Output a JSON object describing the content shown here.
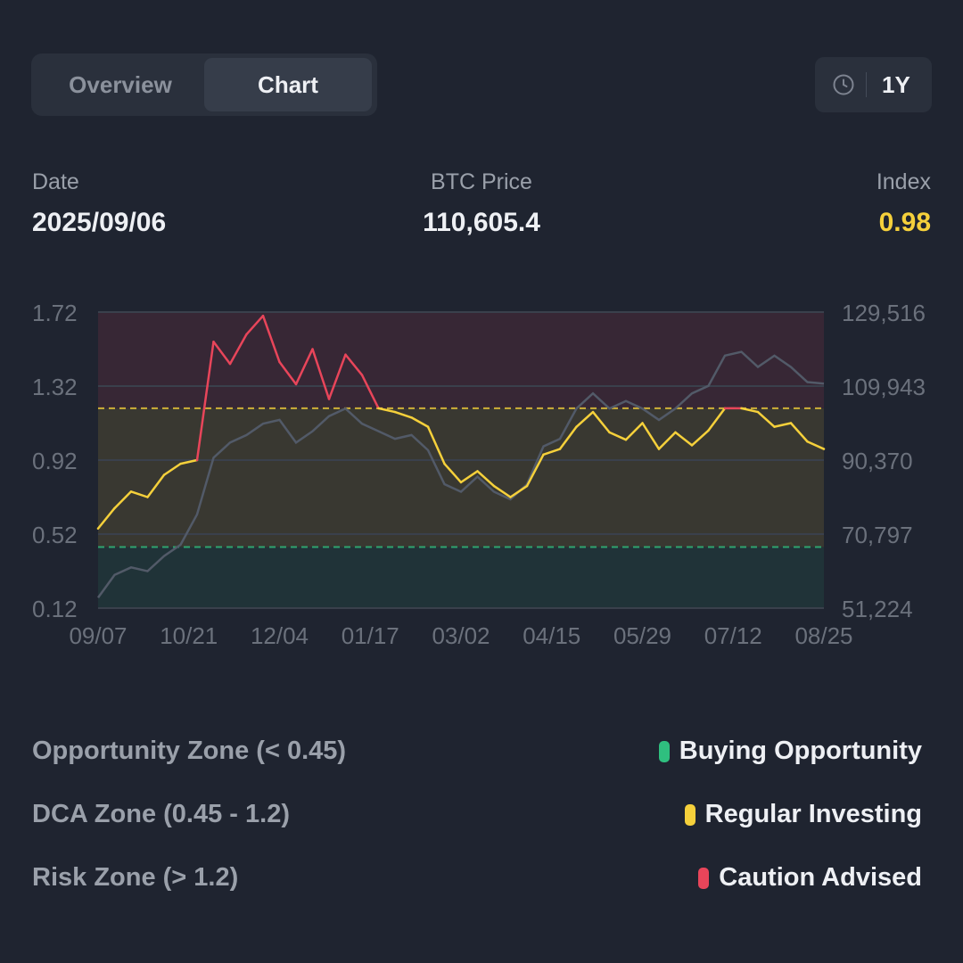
{
  "tabs": {
    "overview": "Overview",
    "chart": "Chart"
  },
  "time_range": {
    "label": "1Y",
    "icon": "clock-icon"
  },
  "stats": {
    "date_label": "Date",
    "date_value": "2025/09/06",
    "price_label": "BTC Price",
    "price_value": "110,605.4",
    "index_label": "Index",
    "index_value": "0.98"
  },
  "colors": {
    "background": "#1f2430",
    "index_accent": "#f5d03b",
    "opportunity": "#2fbf7f",
    "dca": "#f5d03b",
    "risk": "#e8455a",
    "price_line": "#525a68"
  },
  "zones": [
    {
      "name": "Opportunity Zone (< 0.45)",
      "tag": "Buying Opportunity",
      "color": "#2fbf7f"
    },
    {
      "name": "DCA Zone (0.45 - 1.2)",
      "tag": "Regular Investing",
      "color": "#f5d03b"
    },
    {
      "name": "Risk Zone (> 1.2)",
      "tag": "Caution Advised",
      "color": "#e8455a"
    }
  ],
  "chart_data": {
    "type": "line",
    "x_ticks": [
      "09/07",
      "10/21",
      "12/04",
      "01/17",
      "03/02",
      "04/15",
      "05/29",
      "07/12",
      "08/25"
    ],
    "y_left_ticks": [
      "1.72",
      "1.32",
      "0.92",
      "0.52",
      "0.12"
    ],
    "y_right_ticks": [
      "129,516",
      "109,943",
      "90,370",
      "70,797",
      "51,224"
    ],
    "y_left_range": [
      0.12,
      1.72
    ],
    "y_right_range": [
      51224,
      129516
    ],
    "thresholds": {
      "opportunity": 0.45,
      "risk": 1.2
    },
    "series": [
      {
        "axis": "left",
        "x": [
          "09/07",
          "09/21",
          "10/05",
          "10/19",
          "10/29",
          "11/06",
          "11/12",
          "11/20",
          "11/28",
          "12/04",
          "12/12",
          "12/18",
          "12/26",
          "01/05",
          "01/13",
          "01/21",
          "01/29",
          "02/06",
          "02/14",
          "02/20",
          "02/26",
          "03/02",
          "03/10",
          "03/18",
          "03/28",
          "04/07",
          "04/15",
          "04/23",
          "05/01",
          "05/09",
          "05/17",
          "05/25",
          "06/02",
          "06/10",
          "06/18",
          "06/26",
          "07/04",
          "07/12",
          "07/20",
          "07/28",
          "08/05",
          "08/13",
          "08/21",
          "08/29",
          "09/06"
        ],
        "values": [
          0.55,
          0.66,
          0.75,
          0.72,
          0.84,
          0.9,
          0.92,
          1.56,
          1.44,
          1.6,
          1.7,
          1.45,
          1.33,
          1.52,
          1.25,
          1.49,
          1.38,
          1.2,
          1.18,
          1.15,
          1.1,
          0.9,
          0.8,
          0.86,
          0.78,
          0.72,
          0.78,
          0.95,
          0.98,
          1.1,
          1.18,
          1.07,
          1.03,
          1.12,
          0.98,
          1.07,
          1.0,
          1.08,
          1.2,
          1.2,
          1.18,
          1.1,
          1.12,
          1.02,
          0.98
        ]
      },
      {
        "axis": "right",
        "x": [
          "09/07",
          "09/21",
          "10/05",
          "10/19",
          "10/29",
          "11/06",
          "11/12",
          "11/20",
          "11/28",
          "12/04",
          "12/12",
          "12/18",
          "12/26",
          "01/05",
          "01/13",
          "01/21",
          "01/29",
          "02/06",
          "02/14",
          "02/20",
          "02/26",
          "03/02",
          "03/10",
          "03/18",
          "03/28",
          "04/07",
          "04/15",
          "04/23",
          "05/01",
          "05/09",
          "05/17",
          "05/25",
          "06/02",
          "06/10",
          "06/18",
          "06/26",
          "07/04",
          "07/12",
          "07/20",
          "07/28",
          "08/05",
          "08/13",
          "08/21",
          "08/29",
          "09/06"
        ],
        "values": [
          54000,
          60000,
          62000,
          61000,
          65000,
          68000,
          76000,
          91000,
          95000,
          97000,
          100000,
          101000,
          95000,
          98000,
          102000,
          104000,
          100000,
          98000,
          96000,
          97000,
          93000,
          84000,
          82000,
          86000,
          82000,
          80000,
          84000,
          94000,
          96000,
          104000,
          108000,
          104000,
          106000,
          104000,
          101000,
          104000,
          108000,
          110000,
          118000,
          119000,
          115000,
          118000,
          115000,
          111000,
          110605
        ]
      }
    ]
  }
}
